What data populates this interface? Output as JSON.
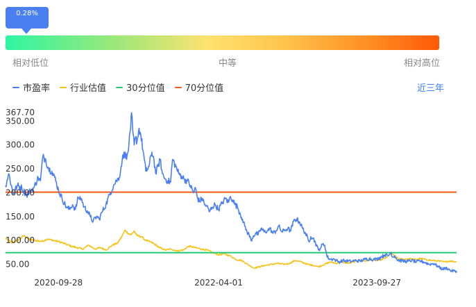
{
  "percentile": {
    "badge": "0.28%",
    "value": 0.0028,
    "low_label": "相对低位",
    "mid_label": "中等",
    "high_label": "相对高位"
  },
  "legend": {
    "range_label": "近三年"
  },
  "colors": {
    "pe": "#4a7ff0",
    "industry": "#f5c31a",
    "p30": "#22cc77",
    "p70": "#f25a15",
    "badge": "#4a7ff0",
    "range_toggle": "#3d7ef5"
  },
  "chart_data": {
    "type": "line",
    "x_ticks": [
      "2020-09-28",
      "2022-04-01",
      "2023-09-27"
    ],
    "y_ticks": [
      "367.70",
      "350.00",
      "300.00",
      "250.00",
      "200.00",
      "150.00",
      "100.00",
      "50.00"
    ],
    "ylim": [
      29,
      368
    ],
    "grid": false,
    "legend_position": "top-left",
    "series": [
      {
        "name": "市盈率",
        "key": "pe",
        "style": "jagged",
        "values": [
          [
            "2020-03-30",
            215
          ],
          [
            "2020-04-10",
            240
          ],
          [
            "2020-04-25",
            198
          ],
          [
            "2020-05-10",
            215
          ],
          [
            "2020-05-25",
            210
          ],
          [
            "2020-06-10",
            195
          ],
          [
            "2020-06-25",
            205
          ],
          [
            "2020-07-05",
            210
          ],
          [
            "2020-07-20",
            232
          ],
          [
            "2020-07-28",
            225
          ],
          [
            "2020-08-05",
            275
          ],
          [
            "2020-08-15",
            270
          ],
          [
            "2020-08-25",
            250
          ],
          [
            "2020-09-05",
            245
          ],
          [
            "2020-09-15",
            232
          ],
          [
            "2020-09-28",
            205
          ],
          [
            "2020-10-10",
            188
          ],
          [
            "2020-10-25",
            170
          ],
          [
            "2020-11-05",
            165
          ],
          [
            "2020-11-15",
            175
          ],
          [
            "2020-11-25",
            165
          ],
          [
            "2020-12-05",
            190
          ],
          [
            "2020-12-15",
            188
          ],
          [
            "2020-12-25",
            170
          ],
          [
            "2021-01-05",
            162
          ],
          [
            "2021-01-15",
            150
          ],
          [
            "2021-01-25",
            140
          ],
          [
            "2021-02-05",
            150
          ],
          [
            "2021-02-15",
            145
          ],
          [
            "2021-02-25",
            160
          ],
          [
            "2021-03-10",
            175
          ],
          [
            "2021-03-25",
            200
          ],
          [
            "2021-04-05",
            215
          ],
          [
            "2021-04-15",
            225
          ],
          [
            "2021-04-25",
            232
          ],
          [
            "2021-05-05",
            270
          ],
          [
            "2021-05-15",
            285
          ],
          [
            "2021-05-20",
            270
          ],
          [
            "2021-05-28",
            300
          ],
          [
            "2021-06-03",
            335
          ],
          [
            "2021-06-06",
            367.7
          ],
          [
            "2021-06-10",
            330
          ],
          [
            "2021-06-15",
            300
          ],
          [
            "2021-06-20",
            315
          ],
          [
            "2021-06-25",
            308
          ],
          [
            "2021-07-02",
            335
          ],
          [
            "2021-07-08",
            320
          ],
          [
            "2021-07-15",
            290
          ],
          [
            "2021-07-20",
            270
          ],
          [
            "2021-07-25",
            245
          ],
          [
            "2021-08-05",
            255
          ],
          [
            "2021-08-15",
            285
          ],
          [
            "2021-08-22",
            270
          ],
          [
            "2021-08-28",
            240
          ],
          [
            "2021-09-05",
            255
          ],
          [
            "2021-09-12",
            270
          ],
          [
            "2021-09-20",
            240
          ],
          [
            "2021-09-28",
            230
          ],
          [
            "2021-10-08",
            225
          ],
          [
            "2021-10-18",
            222
          ],
          [
            "2021-10-25",
            270
          ],
          [
            "2021-11-05",
            255
          ],
          [
            "2021-11-15",
            240
          ],
          [
            "2021-11-25",
            235
          ],
          [
            "2021-12-05",
            228
          ],
          [
            "2021-12-15",
            225
          ],
          [
            "2021-12-25",
            215
          ],
          [
            "2022-01-05",
            200
          ],
          [
            "2022-01-12",
            210
          ],
          [
            "2022-01-18",
            190
          ],
          [
            "2022-01-25",
            182
          ],
          [
            "2022-02-05",
            188
          ],
          [
            "2022-02-12",
            175
          ],
          [
            "2022-02-20",
            172
          ],
          [
            "2022-02-28",
            160
          ],
          [
            "2022-03-10",
            170
          ],
          [
            "2022-03-20",
            175
          ],
          [
            "2022-04-01",
            165
          ],
          [
            "2022-04-15",
            180
          ],
          [
            "2022-04-25",
            188
          ],
          [
            "2022-05-05",
            180
          ],
          [
            "2022-05-12",
            192
          ],
          [
            "2022-05-20",
            185
          ],
          [
            "2022-05-28",
            175
          ],
          [
            "2022-06-05",
            170
          ],
          [
            "2022-06-15",
            155
          ],
          [
            "2022-06-22",
            145
          ],
          [
            "2022-06-30",
            130
          ],
          [
            "2022-07-08",
            118
          ],
          [
            "2022-07-15",
            112
          ],
          [
            "2022-07-22",
            100
          ],
          [
            "2022-07-30",
            110
          ],
          [
            "2022-08-08",
            115
          ],
          [
            "2022-08-15",
            112
          ],
          [
            "2022-08-25",
            125
          ],
          [
            "2022-09-05",
            118
          ],
          [
            "2022-09-15",
            120
          ],
          [
            "2022-09-25",
            125
          ],
          [
            "2022-10-05",
            115
          ],
          [
            "2022-10-15",
            120
          ],
          [
            "2022-10-25",
            130
          ],
          [
            "2022-11-05",
            118
          ],
          [
            "2022-11-15",
            122
          ],
          [
            "2022-11-25",
            125
          ],
          [
            "2022-12-05",
            120
          ],
          [
            "2022-12-15",
            140
          ],
          [
            "2022-12-25",
            145
          ],
          [
            "2023-01-05",
            138
          ],
          [
            "2023-01-15",
            125
          ],
          [
            "2023-01-25",
            115
          ],
          [
            "2023-02-05",
            98
          ],
          [
            "2023-02-12",
            108
          ],
          [
            "2023-02-20",
            105
          ],
          [
            "2023-02-28",
            95
          ],
          [
            "2023-03-05",
            88
          ],
          [
            "2023-03-10",
            80
          ],
          [
            "2023-03-18",
            85
          ],
          [
            "2023-03-25",
            92
          ],
          [
            "2023-04-01",
            90
          ],
          [
            "2023-04-08",
            68
          ],
          [
            "2023-04-15",
            62
          ],
          [
            "2023-04-22",
            60
          ],
          [
            "2023-04-30",
            62
          ],
          [
            "2023-05-10",
            58
          ],
          [
            "2023-05-20",
            55
          ],
          [
            "2023-06-01",
            58
          ],
          [
            "2023-06-15",
            57
          ],
          [
            "2023-07-01",
            56
          ],
          [
            "2023-07-15",
            58
          ],
          [
            "2023-08-01",
            57
          ],
          [
            "2023-08-15",
            60
          ],
          [
            "2023-09-01",
            62
          ],
          [
            "2023-09-15",
            60
          ],
          [
            "2023-09-27",
            61
          ],
          [
            "2023-10-10",
            65
          ],
          [
            "2023-10-25",
            70
          ],
          [
            "2023-11-05",
            68
          ],
          [
            "2023-11-15",
            75
          ],
          [
            "2023-11-20",
            65
          ],
          [
            "2023-11-28",
            68
          ],
          [
            "2023-12-05",
            60
          ],
          [
            "2023-12-15",
            58
          ],
          [
            "2023-12-25",
            57
          ],
          [
            "2024-01-10",
            56
          ],
          [
            "2024-01-25",
            58
          ],
          [
            "2024-02-10",
            55
          ],
          [
            "2024-02-25",
            57
          ],
          [
            "2024-03-10",
            54
          ],
          [
            "2024-03-25",
            50
          ],
          [
            "2024-04-10",
            52
          ],
          [
            "2024-04-25",
            45
          ],
          [
            "2024-05-10",
            40
          ],
          [
            "2024-05-25",
            42
          ],
          [
            "2024-06-10",
            36
          ],
          [
            "2024-06-27",
            36
          ]
        ]
      },
      {
        "name": "行业估值",
        "key": "industry",
        "style": "jagged-small",
        "values": [
          [
            "2020-03-30",
            105
          ],
          [
            "2020-04-20",
            95
          ],
          [
            "2020-05-10",
            100
          ],
          [
            "2020-06-01",
            110
          ],
          [
            "2020-06-20",
            102
          ],
          [
            "2020-07-10",
            100
          ],
          [
            "2020-08-01",
            98
          ],
          [
            "2020-08-20",
            103
          ],
          [
            "2020-09-10",
            100
          ],
          [
            "2020-09-28",
            98
          ],
          [
            "2020-10-20",
            93
          ],
          [
            "2020-11-10",
            88
          ],
          [
            "2020-12-01",
            85
          ],
          [
            "2020-12-20",
            82
          ],
          [
            "2021-01-10",
            90
          ],
          [
            "2021-02-01",
            82
          ],
          [
            "2021-02-20",
            85
          ],
          [
            "2021-03-10",
            80
          ],
          [
            "2021-04-01",
            90
          ],
          [
            "2021-04-20",
            95
          ],
          [
            "2021-05-05",
            110
          ],
          [
            "2021-05-15",
            122
          ],
          [
            "2021-05-25",
            115
          ],
          [
            "2021-06-05",
            112
          ],
          [
            "2021-06-15",
            120
          ],
          [
            "2021-06-25",
            110
          ],
          [
            "2021-07-10",
            108
          ],
          [
            "2021-07-25",
            100
          ],
          [
            "2021-08-10",
            97
          ],
          [
            "2021-08-25",
            92
          ],
          [
            "2021-09-10",
            85
          ],
          [
            "2021-10-01",
            80
          ],
          [
            "2021-10-20",
            82
          ],
          [
            "2021-11-10",
            78
          ],
          [
            "2021-12-01",
            80
          ],
          [
            "2021-12-20",
            88
          ],
          [
            "2022-01-10",
            85
          ],
          [
            "2022-02-01",
            82
          ],
          [
            "2022-02-20",
            80
          ],
          [
            "2022-03-10",
            75
          ],
          [
            "2022-04-01",
            70
          ],
          [
            "2022-04-20",
            72
          ],
          [
            "2022-05-10",
            68
          ],
          [
            "2022-06-01",
            60
          ],
          [
            "2022-06-20",
            58
          ],
          [
            "2022-07-10",
            50
          ],
          [
            "2022-08-01",
            42
          ],
          [
            "2022-08-20",
            45
          ],
          [
            "2022-09-10",
            48
          ],
          [
            "2022-10-01",
            50
          ],
          [
            "2022-10-20",
            52
          ],
          [
            "2022-11-10",
            50
          ],
          [
            "2022-12-01",
            52
          ],
          [
            "2022-12-20",
            58
          ],
          [
            "2023-01-10",
            55
          ],
          [
            "2023-02-01",
            50
          ],
          [
            "2023-02-20",
            48
          ],
          [
            "2023-03-10",
            45
          ],
          [
            "2023-04-01",
            50
          ],
          [
            "2023-04-20",
            55
          ],
          [
            "2023-05-10",
            52
          ],
          [
            "2023-06-01",
            55
          ],
          [
            "2023-06-20",
            52
          ],
          [
            "2023-07-10",
            55
          ],
          [
            "2023-08-01",
            58
          ],
          [
            "2023-08-20",
            57
          ],
          [
            "2023-09-10",
            60
          ],
          [
            "2023-09-27",
            58
          ],
          [
            "2023-10-15",
            60
          ],
          [
            "2023-11-01",
            65
          ],
          [
            "2023-11-15",
            75
          ],
          [
            "2023-11-25",
            68
          ],
          [
            "2023-12-10",
            62
          ],
          [
            "2023-12-25",
            60
          ],
          [
            "2024-01-15",
            62
          ],
          [
            "2024-02-05",
            60
          ],
          [
            "2024-02-25",
            62
          ],
          [
            "2024-03-15",
            60
          ],
          [
            "2024-04-05",
            58
          ],
          [
            "2024-04-25",
            57
          ],
          [
            "2024-05-15",
            55
          ],
          [
            "2024-06-05",
            57
          ],
          [
            "2024-06-27",
            55
          ]
        ]
      },
      {
        "name": "30分位值",
        "key": "p30",
        "style": "flat",
        "values": [
          [
            "2020-03-30",
            74.6
          ],
          [
            "2024-06-27",
            74.6
          ]
        ]
      },
      {
        "name": "70分位值",
        "key": "p70",
        "style": "flat",
        "values": [
          [
            "2020-03-30",
            201.2
          ],
          [
            "2024-06-27",
            201.2
          ]
        ]
      }
    ]
  }
}
